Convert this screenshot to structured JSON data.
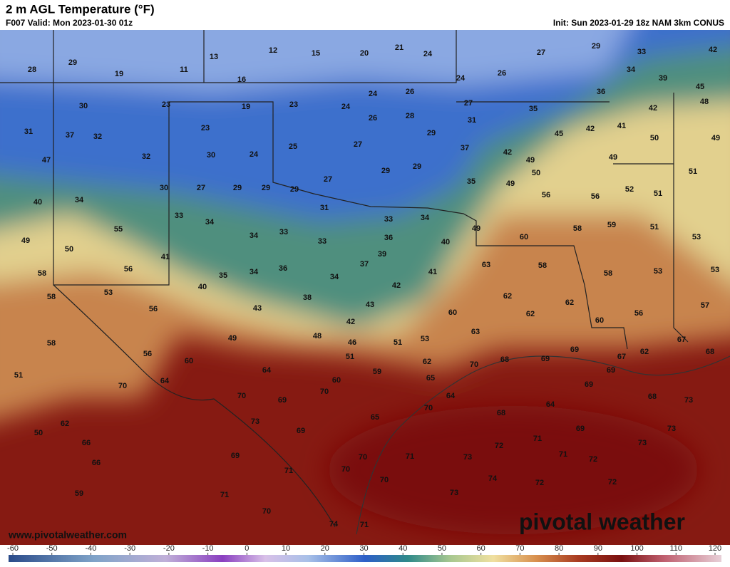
{
  "header": {
    "title": "2 m AGL Temperature (°F)",
    "valid": "F007 Valid: Mon 2023-01-30 01z",
    "init": "Init: Sun 2023-01-29 18z NAM 3km CONUS"
  },
  "map": {
    "labels": [
      28,
      29,
      19,
      11,
      13,
      12,
      15,
      20,
      21,
      24,
      27,
      29,
      33,
      42,
      16,
      24,
      26,
      34,
      39,
      30,
      23,
      19,
      23,
      24,
      24,
      26,
      27,
      36,
      45,
      48,
      31,
      37,
      32,
      26,
      28,
      31,
      35,
      42,
      45,
      42,
      41,
      50,
      49,
      23,
      29,
      27,
      25,
      47,
      32,
      30,
      24,
      37,
      42,
      49,
      49,
      29,
      29,
      50,
      51,
      27,
      35,
      49,
      30,
      27,
      29,
      29,
      29,
      52,
      51,
      56,
      56,
      40,
      34,
      31,
      33,
      34,
      33,
      34,
      55,
      49,
      59,
      51,
      33,
      34,
      33,
      36,
      40,
      60,
      58,
      53,
      49,
      50,
      39,
      41,
      37,
      63,
      58,
      58,
      53,
      53,
      58,
      56,
      35,
      34,
      36,
      34,
      41,
      53,
      58,
      40,
      42,
      38,
      43,
      62,
      62,
      57,
      56,
      43,
      60,
      62,
      56,
      60,
      42,
      63,
      49,
      48,
      46,
      51,
      53,
      58,
      56,
      51,
      60,
      62,
      70,
      68,
      69,
      69,
      67,
      62,
      67,
      68,
      64,
      59,
      69,
      51,
      65,
      60,
      64,
      70,
      70,
      70,
      69,
      69,
      64,
      68,
      73,
      64,
      70,
      68,
      65,
      73,
      62,
      50,
      69,
      69,
      73,
      66,
      71,
      73,
      72,
      71,
      73,
      71,
      72,
      69,
      66,
      70,
      70,
      71,
      70,
      74,
      72,
      72,
      59,
      73,
      71,
      70,
      74,
      71
    ]
  },
  "footer": {
    "url": "www.pivotalweather.com",
    "watermark": "pivotal weather"
  },
  "colorbar": {
    "ticks": [
      -60,
      -50,
      -40,
      -30,
      -20,
      -10,
      0,
      10,
      20,
      30,
      40,
      50,
      60,
      70,
      80,
      90,
      100,
      110,
      120
    ]
  }
}
